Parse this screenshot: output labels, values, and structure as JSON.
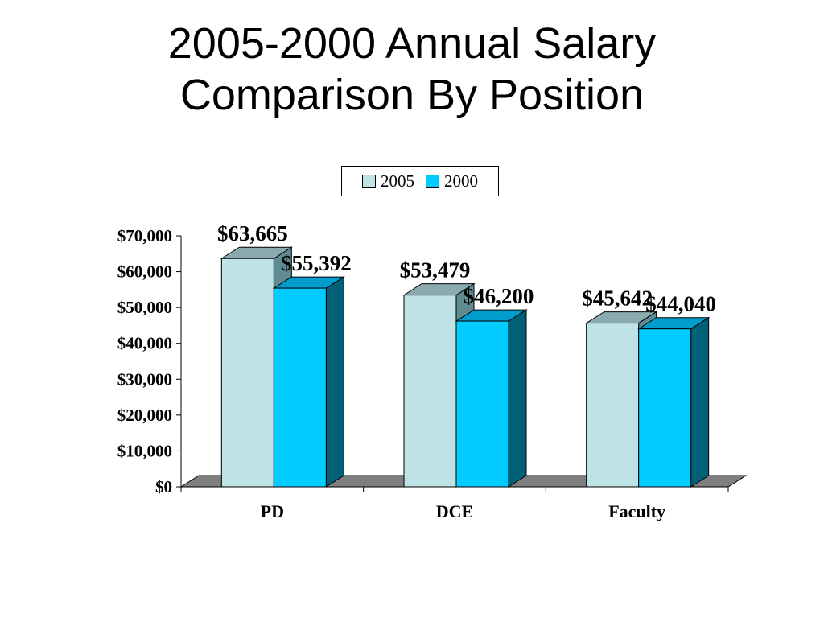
{
  "title": [
    "2005-2000 Annual Salary",
    "Comparison By Position"
  ],
  "chart_data": {
    "type": "bar",
    "title": "2005-2000 Annual Salary Comparison By Position",
    "categories": [
      "PD",
      "DCE",
      "Faculty"
    ],
    "series": [
      {
        "name": "2005",
        "values": [
          63665,
          53479,
          45642
        ],
        "labels": [
          "$63,665",
          "$53,479",
          "$45,642"
        ],
        "color": "#bde3e6"
      },
      {
        "name": "2000",
        "values": [
          55392,
          46200,
          44040
        ],
        "labels": [
          "$55,392",
          "$46,200",
          "$44,040"
        ],
        "color": "#00ccff"
      }
    ],
    "yticks": [
      "$0",
      "$10,000",
      "$20,000",
      "$30,000",
      "$40,000",
      "$50,000",
      "$60,000",
      "$70,000"
    ],
    "ylim": [
      0,
      70000
    ],
    "xlabel": "",
    "ylabel": "",
    "legend": "top-center",
    "grid": false,
    "three_d": true
  }
}
